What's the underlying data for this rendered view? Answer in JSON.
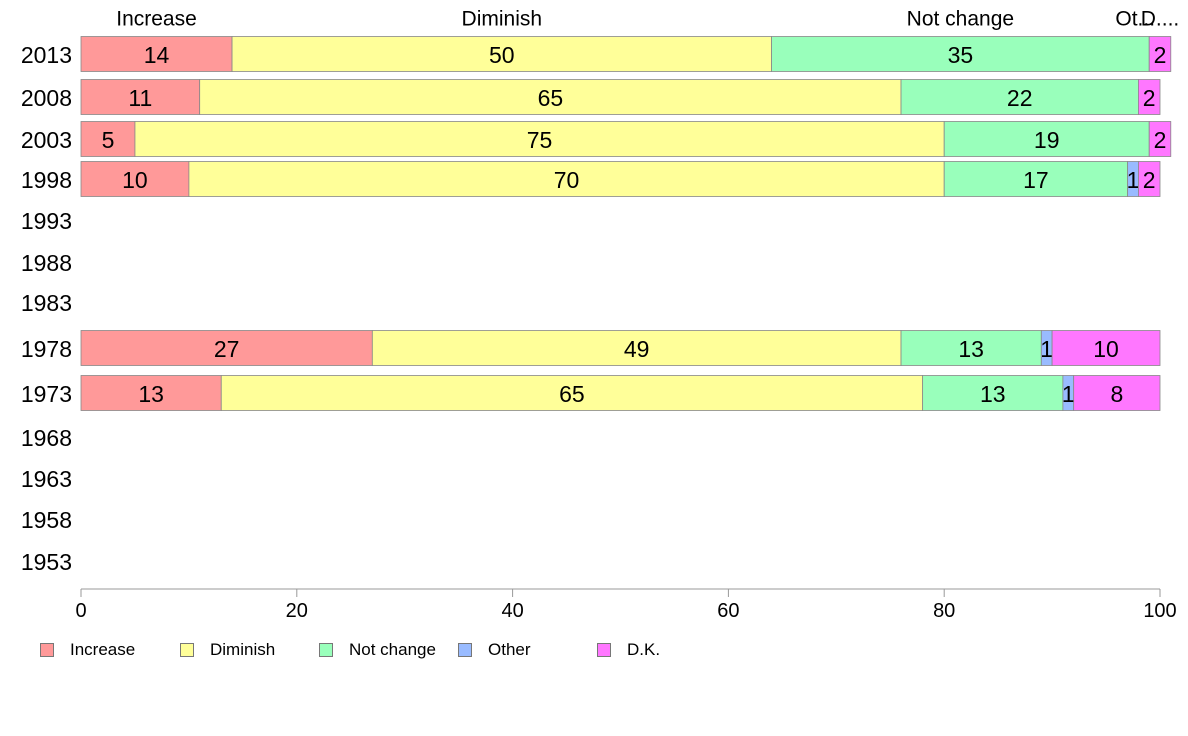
{
  "chart_data": {
    "type": "bar",
    "orientation": "horizontal",
    "stacked": true,
    "categories": [
      "2013",
      "2008",
      "2003",
      "1998",
      "1993",
      "1988",
      "1983",
      "1978",
      "1973",
      "1968",
      "1963",
      "1958",
      "1953"
    ],
    "series": [
      {
        "name": "Increase",
        "color": "#ff9999",
        "values": [
          14,
          11,
          5,
          10,
          null,
          null,
          null,
          27,
          13,
          null,
          null,
          null,
          null
        ]
      },
      {
        "name": "Diminish",
        "color": "#ffff99",
        "values": [
          50,
          65,
          75,
          70,
          null,
          null,
          null,
          49,
          65,
          null,
          null,
          null,
          null
        ]
      },
      {
        "name": "Not change",
        "color": "#99ffbb",
        "values": [
          35,
          22,
          19,
          17,
          null,
          null,
          null,
          13,
          13,
          null,
          null,
          null,
          null
        ]
      },
      {
        "name": "Other",
        "color": "#99bbff",
        "values": [
          0,
          0,
          0,
          1,
          null,
          null,
          null,
          1,
          1,
          null,
          null,
          null,
          null
        ]
      },
      {
        "name": "D.K.",
        "color": "#ff77ff",
        "values": [
          2,
          2,
          2,
          2,
          null,
          null,
          null,
          10,
          8,
          null,
          null,
          null,
          null
        ]
      }
    ],
    "top_labels": [
      "Increase",
      "Diminish",
      "Not change",
      "Ot...",
      "D...."
    ],
    "xlim": [
      0,
      100
    ],
    "xticks": [
      0,
      20,
      40,
      60,
      80,
      100
    ],
    "title": "",
    "xlabel": "",
    "ylabel": "",
    "grid": false,
    "legend_position": "bottom"
  }
}
